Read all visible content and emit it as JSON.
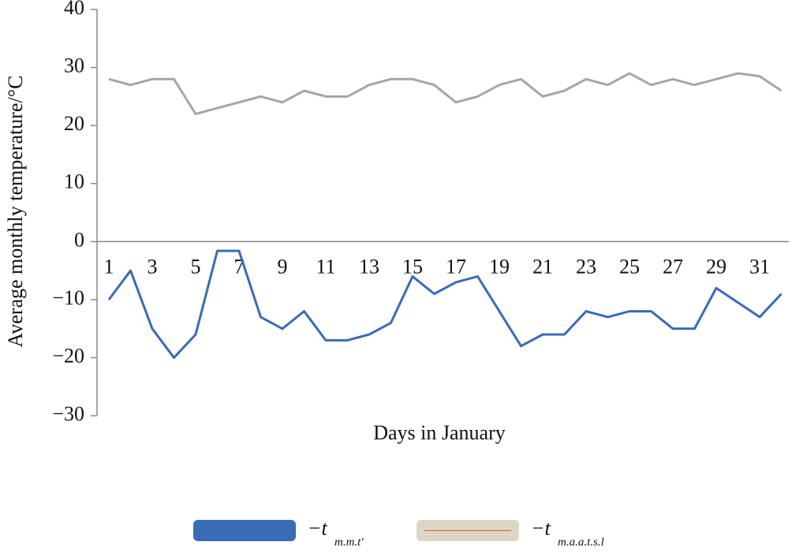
{
  "chart_data": {
    "type": "line",
    "y_label": "Average monthly temperature/°C",
    "x_label": "Days in January",
    "categories": [
      "1",
      null,
      "3",
      null,
      "5",
      null,
      "7",
      null,
      "9",
      null,
      "11",
      null,
      "13",
      null,
      "15",
      null,
      "17",
      null,
      "19",
      null,
      "21",
      null,
      "23",
      null,
      "25",
      null,
      "27",
      null,
      "29",
      null,
      "31",
      null
    ],
    "series": [
      {
        "name": "−t",
        "name_subscript": "m.m.t'",
        "color": "#3a6bb5",
        "legend_color": "#3a6bb5",
        "values": [
          -10,
          -5,
          -15,
          -20,
          -16,
          -1.6,
          -1.6,
          -13,
          -15,
          -12,
          -17,
          -17,
          -16,
          -14,
          -6,
          -9,
          -7,
          -6,
          -12,
          -18,
          -16,
          -16,
          -12,
          -13,
          -12,
          -12,
          -15,
          -15,
          -8,
          -10.5,
          -13,
          -9
        ]
      },
      {
        "name": "−t",
        "name_subscript": "m.a.a.t.s.l",
        "color": "#a6a6a6",
        "legend_color": "#ddd6c4",
        "legend_line_color": "#e06a5a",
        "values": [
          28,
          27,
          28,
          28,
          22,
          23,
          24,
          25,
          24,
          26,
          25,
          25,
          27,
          28,
          28,
          27,
          24,
          25,
          27,
          28,
          25,
          26,
          28,
          27,
          29,
          27,
          28,
          27,
          28,
          29,
          28.5,
          26
        ]
      }
    ],
    "ylim": [
      -30,
      40
    ],
    "yticks": [
      {
        "value": -30,
        "label": "−30"
      },
      {
        "value": -20,
        "label": "−20"
      },
      {
        "value": -10,
        "label": "−10"
      },
      0,
      10,
      20,
      30,
      40
    ]
  }
}
